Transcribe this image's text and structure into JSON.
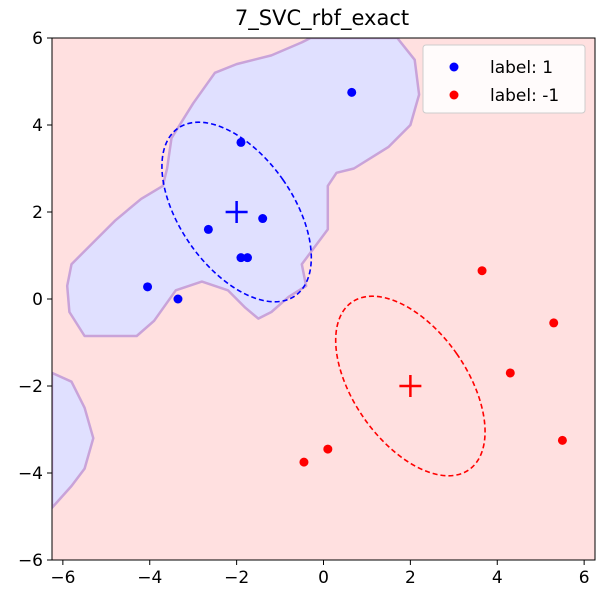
{
  "chart_data": {
    "type": "scatter",
    "title": "7_SVC_rbf_exact",
    "xlabel": "",
    "ylabel": "",
    "xlim": [
      -6.25,
      6.25
    ],
    "ylim": [
      -6,
      6
    ],
    "xticks": [
      -6,
      -4,
      -2,
      0,
      2,
      4,
      6
    ],
    "yticks": [
      -6,
      -4,
      -2,
      0,
      2,
      4,
      6
    ],
    "xtick_labels": [
      "−6",
      "−4",
      "−2",
      "0",
      "2",
      "4",
      "6"
    ],
    "ytick_labels": [
      "−6",
      "−4",
      "−2",
      "0",
      "2",
      "4",
      "6"
    ],
    "grid": false,
    "legend_position": "top-right",
    "background_colors": {
      "label_-1_region": "#ffe0e0",
      "label_1_region": "#e0e0ff",
      "boundary": "#c9a3d9"
    },
    "series": [
      {
        "name": "label: 1",
        "color": "#0000ff",
        "points": [
          [
            -1.9,
            3.6
          ],
          [
            0.65,
            4.75
          ],
          [
            -1.4,
            1.85
          ],
          [
            -2.65,
            1.6
          ],
          [
            -1.9,
            0.95
          ],
          [
            -1.75,
            0.95
          ],
          [
            -4.05,
            0.28
          ],
          [
            -3.35,
            0.0
          ]
        ]
      },
      {
        "name": "label: -1",
        "color": "#ff0000",
        "points": [
          [
            3.65,
            0.65
          ],
          [
            5.3,
            -0.55
          ],
          [
            4.3,
            -1.7
          ],
          [
            5.5,
            -3.25
          ],
          [
            0.1,
            -3.45
          ],
          [
            -0.45,
            -3.75
          ]
        ]
      }
    ],
    "centers": [
      {
        "color": "#0000ff",
        "x": -2,
        "y": 2
      },
      {
        "color": "#ff0000",
        "x": 2,
        "y": -2
      }
    ],
    "ellipses": [
      {
        "color": "#0000ff",
        "cx": -2,
        "cy": 2,
        "rx_axis": 1.3,
        "ry_axis": 2.35,
        "angle_deg": 35
      },
      {
        "color": "#ff0000",
        "cx": 2,
        "cy": -2,
        "rx_axis": 1.3,
        "ry_axis": 2.35,
        "angle_deg": 35
      }
    ],
    "decision_regions_label_1": [
      [
        [
          -5.8,
          0.8
        ],
        [
          -4.8,
          1.8
        ],
        [
          -4.2,
          2.3
        ],
        [
          -3.7,
          2.6
        ],
        [
          -3.6,
          3.0
        ],
        [
          -3.5,
          3.7
        ],
        [
          -3.0,
          4.5
        ],
        [
          -2.5,
          5.2
        ],
        [
          -2.0,
          5.4
        ],
        [
          -1.2,
          5.6
        ],
        [
          -0.5,
          5.9
        ],
        [
          -0.3,
          6.0
        ],
        [
          1.7,
          6.0
        ],
        [
          2.1,
          5.5
        ],
        [
          2.2,
          4.7
        ],
        [
          2.0,
          4.0
        ],
        [
          1.5,
          3.5
        ],
        [
          0.7,
          3.0
        ],
        [
          0.3,
          2.9
        ],
        [
          0.1,
          2.6
        ],
        [
          0.1,
          1.6
        ],
        [
          -0.5,
          0.8
        ],
        [
          -0.4,
          0.3
        ],
        [
          -0.8,
          0.05
        ],
        [
          -1.2,
          -0.3
        ],
        [
          -1.5,
          -0.45
        ],
        [
          -1.8,
          -0.2
        ],
        [
          -2.2,
          0.2
        ],
        [
          -2.8,
          0.4
        ],
        [
          -3.4,
          0.2
        ],
        [
          -3.9,
          -0.5
        ],
        [
          -4.3,
          -0.85
        ],
        [
          -5.5,
          -0.85
        ],
        [
          -5.85,
          -0.3
        ],
        [
          -5.9,
          0.3
        ]
      ],
      [
        [
          -6.25,
          -1.7
        ],
        [
          -5.8,
          -1.9
        ],
        [
          -5.5,
          -2.5
        ],
        [
          -5.3,
          -3.2
        ],
        [
          -5.5,
          -3.9
        ],
        [
          -5.8,
          -4.3
        ],
        [
          -6.25,
          -4.8
        ]
      ]
    ]
  },
  "legend": {
    "items": [
      {
        "label": "label: 1",
        "color": "#0000ff"
      },
      {
        "label": "label: -1",
        "color": "#ff0000"
      }
    ]
  }
}
